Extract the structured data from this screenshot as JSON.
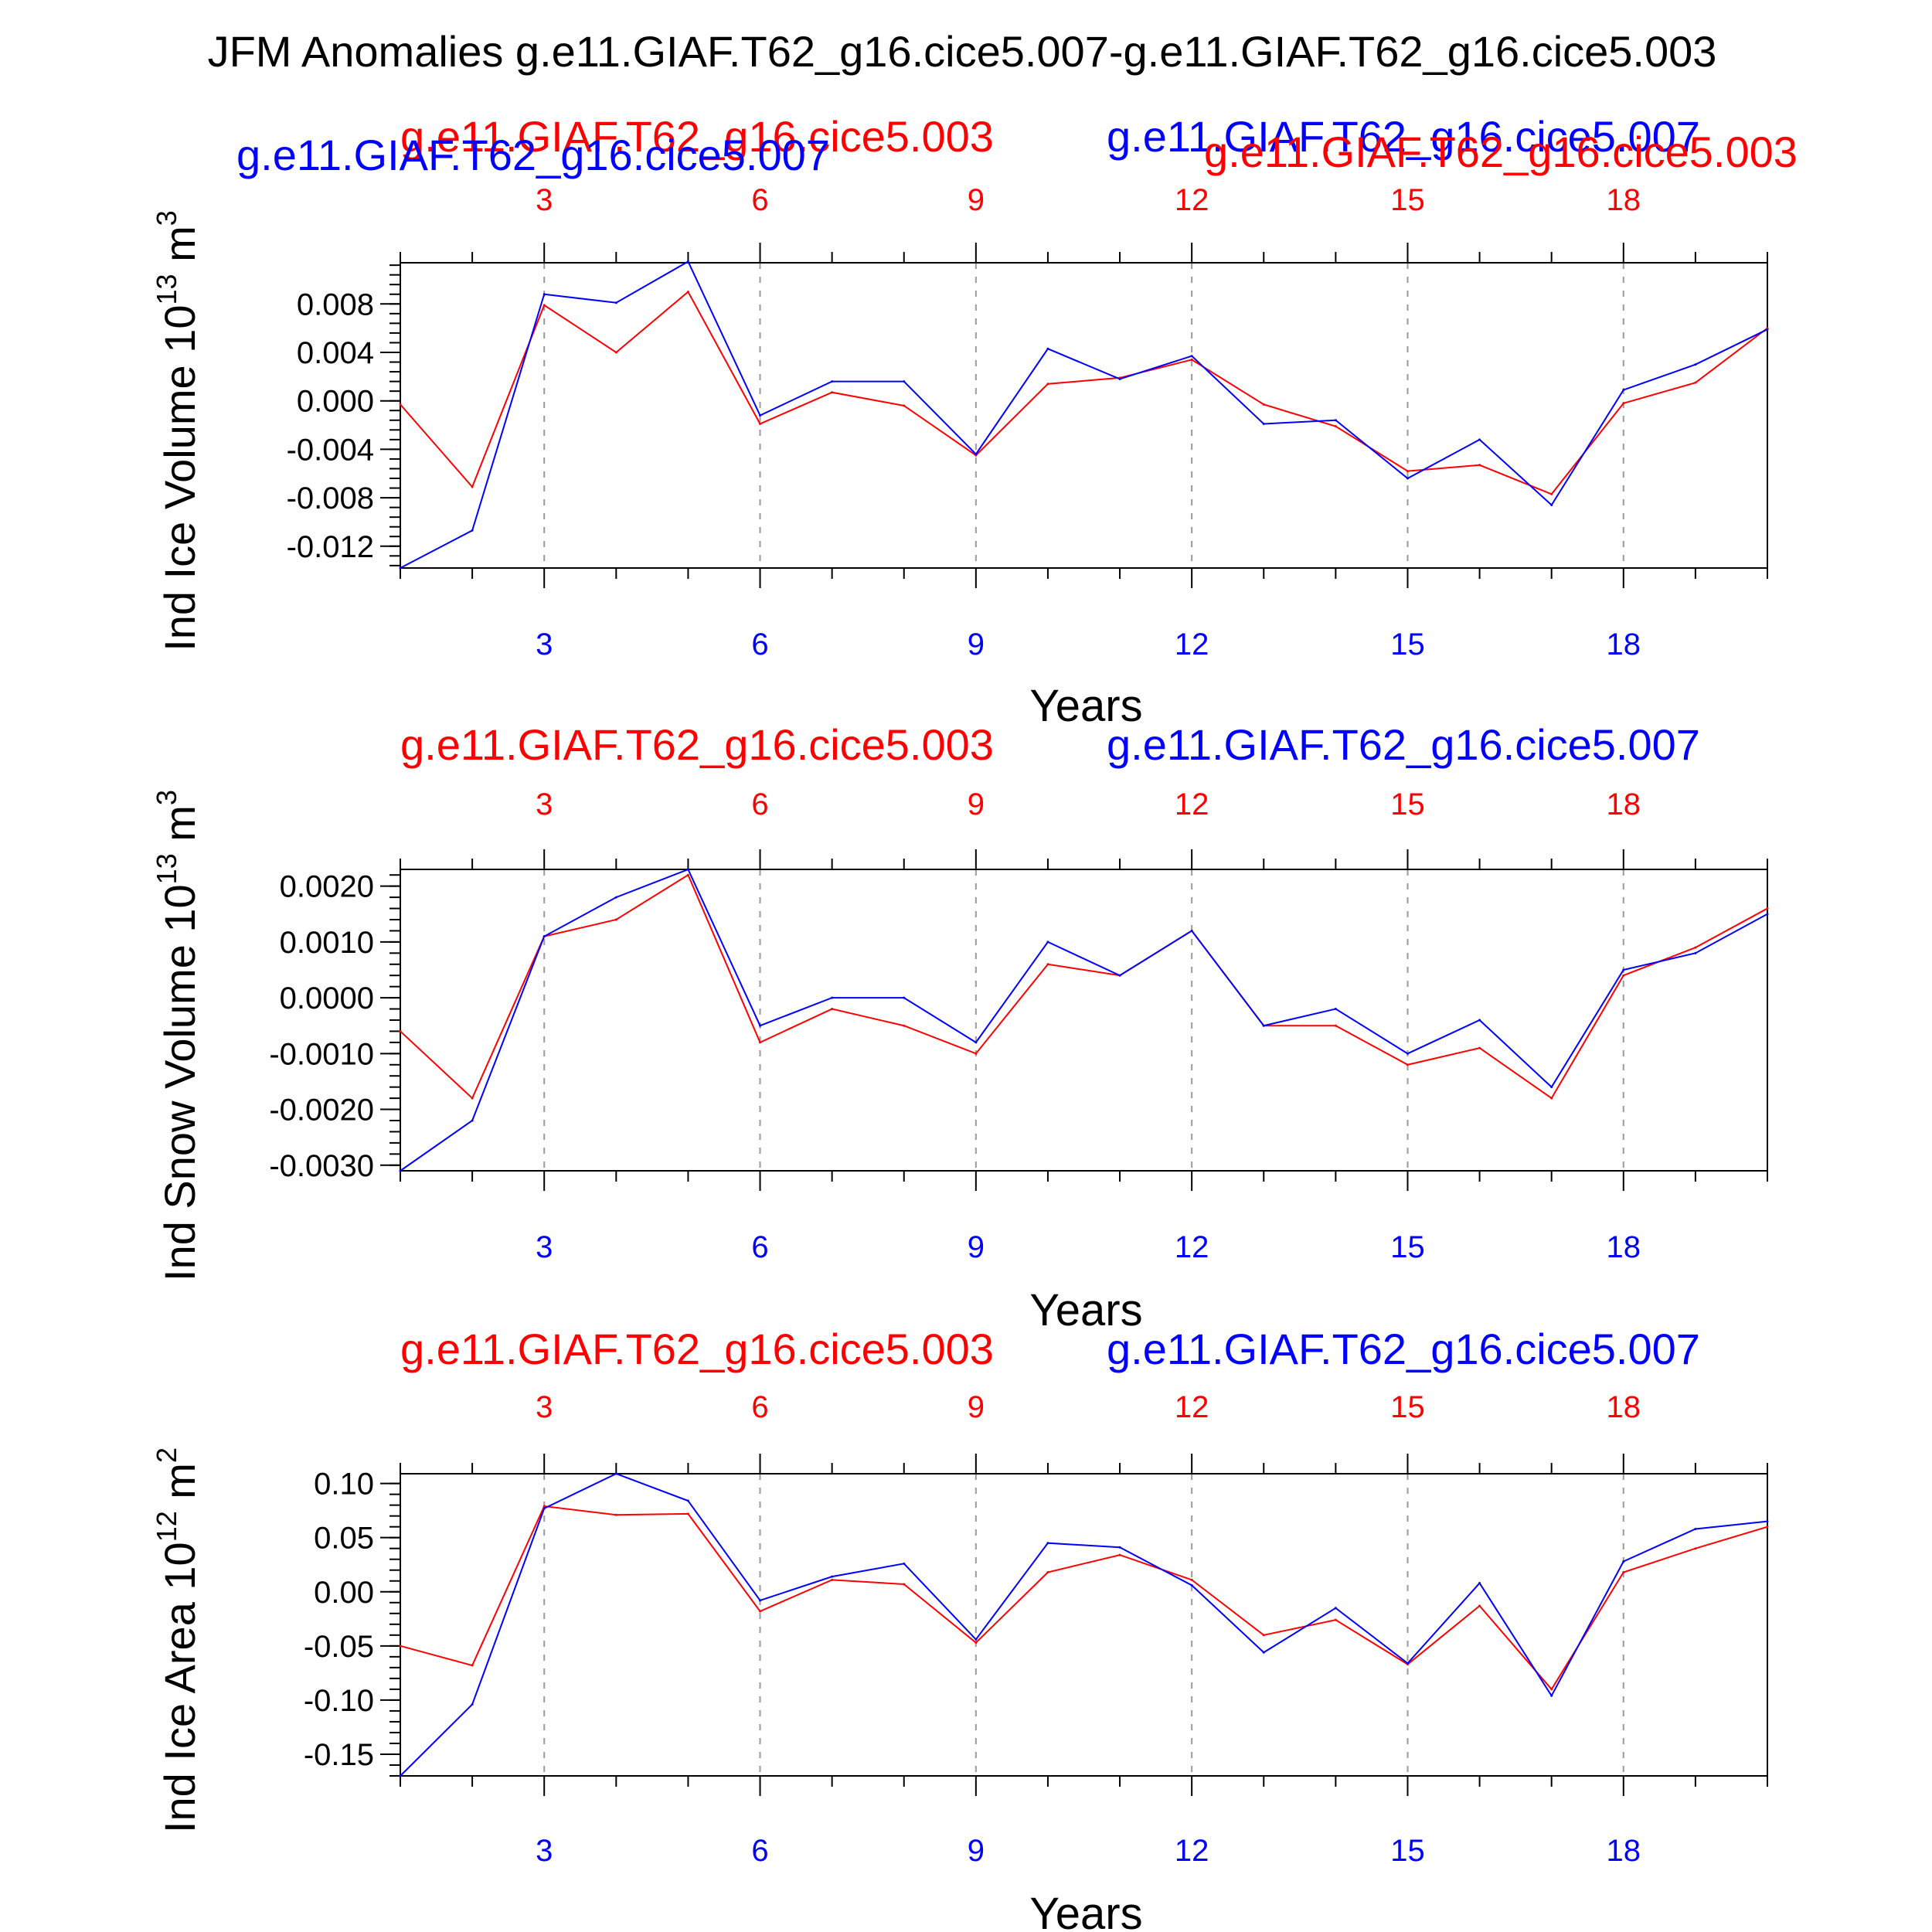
{
  "title": "JFM Anomalies g.e11.GIAF.T62_g16.cice5.007-g.e11.GIAF.T62_g16.cice5.003",
  "colors": {
    "case_a": "#ff0000",
    "case_b": "#0000ff",
    "axis": "#000000",
    "grid": "#9a9a9a"
  },
  "chart_data": [
    {
      "type": "line",
      "ylabel_main": "Ind Ice Volume 10",
      "ylabel_exp": "13",
      "ylabel_unit": "m",
      "ylabel_unit_exp": "3",
      "xlabel": "Years",
      "legend_red": "g.e11.GIAF.T62_g16.cice5.003",
      "legend_blue": "g.e11.GIAF.T62_g16.cice5.007",
      "legend_red_2": "g.e11.GIAF.T62_g16.cice5.003",
      "legend_blue_2": "g.e11.GIAF.T62_g16.cice5.007",
      "xlim": [
        1,
        20
      ],
      "ylim": [
        -0.0138,
        0.0114
      ],
      "yticks": [
        "0.008",
        "0.004",
        "0.000",
        "-0.004",
        "-0.008",
        "-0.012"
      ],
      "xticks": [
        "3",
        "6",
        "9",
        "12",
        "15",
        "18"
      ],
      "x": [
        1,
        2,
        3,
        4,
        5,
        6,
        7,
        8,
        9,
        10,
        11,
        12,
        13,
        14,
        15,
        16,
        17,
        18,
        19,
        20
      ],
      "series": [
        {
          "name": "g.e11.GIAF.T62_g16.cice5.003",
          "color": "#ff0000",
          "values": [
            -0.0003,
            -0.0071,
            0.0079,
            0.004,
            0.009,
            -0.0019,
            0.0007,
            -0.0004,
            -0.0045,
            0.0014,
            0.0019,
            0.0034,
            -0.0003,
            -0.0021,
            -0.0058,
            -0.0053,
            -0.0077,
            -0.0002,
            0.0015,
            0.006
          ]
        },
        {
          "name": "g.e11.GIAF.T62_g16.cice5.007",
          "color": "#0000ff",
          "values": [
            -0.0138,
            -0.0107,
            0.0088,
            0.0081,
            0.0115,
            -0.0012,
            0.0016,
            0.0016,
            -0.0044,
            0.0043,
            0.0018,
            0.0037,
            -0.0019,
            -0.0016,
            -0.0064,
            -0.0032,
            -0.0086,
            0.0009,
            0.003,
            0.0059
          ]
        }
      ]
    },
    {
      "type": "line",
      "ylabel_main": "Ind Snow Volume 10",
      "ylabel_exp": "13",
      "ylabel_unit": "m",
      "ylabel_unit_exp": "3",
      "xlabel": "Years",
      "legend_red": "g.e11.GIAF.T62_g16.cice5.003",
      "legend_blue": "g.e11.GIAF.T62_g16.cice5.007",
      "xlim": [
        1,
        20
      ],
      "ylim": [
        -0.0031,
        0.0023
      ],
      "yticks": [
        "0.0020",
        "0.0010",
        "0.0000",
        "-0.0010",
        "-0.0020",
        "-0.0030"
      ],
      "xticks": [
        "3",
        "6",
        "9",
        "12",
        "15",
        "18"
      ],
      "x": [
        1,
        2,
        3,
        4,
        5,
        6,
        7,
        8,
        9,
        10,
        11,
        12,
        13,
        14,
        15,
        16,
        17,
        18,
        19,
        20
      ],
      "series": [
        {
          "name": "g.e11.GIAF.T62_g16.cice5.003",
          "color": "#ff0000",
          "values": [
            -0.0006,
            -0.0018,
            0.0011,
            0.0014,
            0.0022,
            -0.0008,
            -0.0002,
            -0.0005,
            -0.001,
            0.0006,
            0.0004,
            0.0012,
            -0.0005,
            -0.0005,
            -0.0012,
            -0.0009,
            -0.0018,
            0.0004,
            0.0009,
            0.0016
          ]
        },
        {
          "name": "g.e11.GIAF.T62_g16.cice5.007",
          "color": "#0000ff",
          "values": [
            -0.0031,
            -0.0022,
            0.0011,
            0.0018,
            0.0023,
            -0.0005,
            0.0,
            0.0,
            -0.0008,
            0.001,
            0.0004,
            0.0012,
            -0.0005,
            -0.0002,
            -0.001,
            -0.0004,
            -0.0016,
            0.0005,
            0.0008,
            0.0015
          ]
        }
      ]
    },
    {
      "type": "line",
      "ylabel_main": "Ind Ice Area 10",
      "ylabel_exp": "12",
      "ylabel_unit": "m",
      "ylabel_unit_exp": "2",
      "xlabel": "Years",
      "legend_red": "g.e11.GIAF.T62_g16.cice5.003",
      "legend_blue": "g.e11.GIAF.T62_g16.cice5.007",
      "xlim": [
        1,
        20
      ],
      "ylim": [
        -0.17,
        0.109
      ],
      "yticks": [
        "0.10",
        "0.05",
        "0.00",
        "-0.05",
        "-0.10",
        "-0.15"
      ],
      "xticks": [
        "3",
        "6",
        "9",
        "12",
        "15",
        "18"
      ],
      "x": [
        1,
        2,
        3,
        4,
        5,
        6,
        7,
        8,
        9,
        10,
        11,
        12,
        13,
        14,
        15,
        16,
        17,
        18,
        19,
        20
      ],
      "series": [
        {
          "name": "g.e11.GIAF.T62_g16.cice5.003",
          "color": "#ff0000",
          "values": [
            -0.05,
            -0.068,
            0.079,
            0.071,
            0.072,
            -0.018,
            0.011,
            0.007,
            -0.047,
            0.018,
            0.034,
            0.011,
            -0.04,
            -0.026,
            -0.067,
            -0.013,
            -0.09,
            0.018,
            0.04,
            0.06
          ]
        },
        {
          "name": "g.e11.GIAF.T62_g16.cice5.007",
          "color": "#0000ff",
          "values": [
            -0.17,
            -0.104,
            0.077,
            0.109,
            0.084,
            -0.008,
            0.014,
            0.026,
            -0.044,
            0.045,
            0.041,
            0.006,
            -0.056,
            -0.015,
            -0.066,
            0.008,
            -0.096,
            0.028,
            0.058,
            0.065
          ]
        }
      ]
    }
  ]
}
